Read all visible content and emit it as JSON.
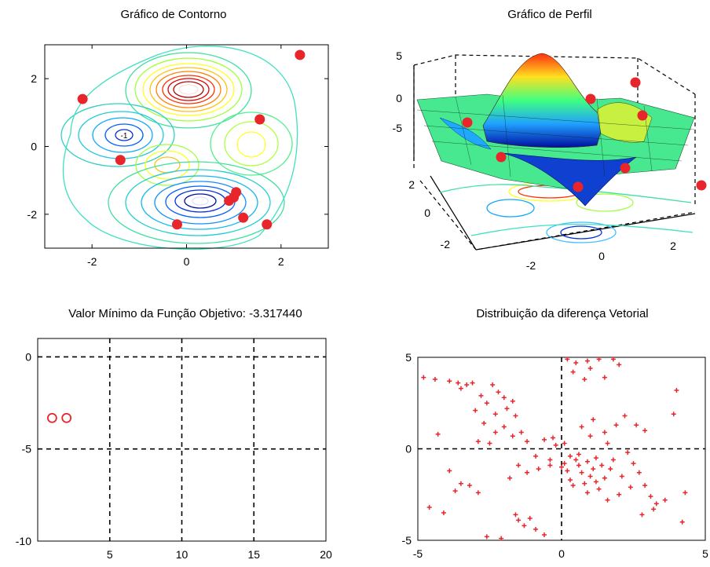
{
  "chart_data": [
    {
      "type": "contour",
      "title": "Gráfico de Contorno",
      "xlim": [
        -3,
        3
      ],
      "ylim": [
        -3,
        3
      ],
      "xticks": [
        -2,
        0,
        2
      ],
      "yticks": [
        -2,
        0,
        2
      ],
      "contour_labels": [
        "-1"
      ],
      "points": [
        {
          "x": 2.4,
          "y": 2.7
        },
        {
          "x": -2.2,
          "y": 1.4
        },
        {
          "x": 1.55,
          "y": 0.8
        },
        {
          "x": -1.4,
          "y": -0.4
        },
        {
          "x": 1.05,
          "y": -1.35
        },
        {
          "x": 1.0,
          "y": -1.5
        },
        {
          "x": 0.9,
          "y": -1.6
        },
        {
          "x": 1.2,
          "y": -2.1
        },
        {
          "x": 1.7,
          "y": -2.3
        },
        {
          "x": -0.2,
          "y": -2.3
        }
      ],
      "point_color": "#e8252b"
    },
    {
      "type": "surface",
      "title": "Gráfico de Perfil",
      "zticks": [
        5,
        0,
        -5
      ],
      "yticks": [
        2,
        0,
        -2
      ],
      "xticks": [
        -2,
        0,
        2
      ],
      "colormap": "jet"
    },
    {
      "type": "scatter",
      "title": "Valor Mínimo da Função Objetivo: -3.317440",
      "xlim": [
        0,
        20
      ],
      "ylim": [
        -10,
        1
      ],
      "xticks": [
        5,
        10,
        15,
        20
      ],
      "yticks": [
        0,
        -5,
        -10
      ],
      "grid": true,
      "points": [
        {
          "x": 1,
          "y": -3.31744
        },
        {
          "x": 2,
          "y": -3.31744
        }
      ],
      "marker": "o",
      "color": "#e8252b"
    },
    {
      "type": "scatter",
      "title": "Distribuição da diferença Vetorial",
      "xlim": [
        -5,
        5
      ],
      "ylim": [
        -5,
        5
      ],
      "xticks": [
        -5,
        0,
        5
      ],
      "yticks": [
        5,
        0,
        -5
      ],
      "axis_lines": "x=0, y=0 dashed",
      "marker": "+",
      "color": "#e8252b",
      "points": [
        [
          -3.9,
          3.7
        ],
        [
          -3.6,
          3.6
        ],
        [
          -3.3,
          3.5
        ],
        [
          -3.5,
          3.3
        ],
        [
          -3.1,
          3.6
        ],
        [
          -2.8,
          2.9
        ],
        [
          -2.4,
          3.5
        ],
        [
          -2.2,
          3.1
        ],
        [
          -2.0,
          2.8
        ],
        [
          -1.7,
          2.6
        ],
        [
          -3.0,
          2.1
        ],
        [
          -2.6,
          2.5
        ],
        [
          -2.3,
          1.9
        ],
        [
          -1.9,
          2.2
        ],
        [
          -1.6,
          1.8
        ],
        [
          -2.7,
          1.4
        ],
        [
          -2.3,
          0.9
        ],
        [
          -2.0,
          1.2
        ],
        [
          -1.7,
          0.7
        ],
        [
          -1.4,
          0.9
        ],
        [
          -2.9,
          0.4
        ],
        [
          -2.5,
          0.3
        ],
        [
          -1.2,
          0.4
        ],
        [
          -0.6,
          0.5
        ],
        [
          -0.3,
          0.6
        ],
        [
          -0.2,
          0.2
        ],
        [
          0.1,
          0.3
        ],
        [
          0.3,
          -0.4
        ],
        [
          0.5,
          -0.6
        ],
        [
          0.1,
          -0.8
        ],
        [
          0.6,
          -0.3
        ],
        [
          0.9,
          -0.7
        ],
        [
          1.2,
          -0.5
        ],
        [
          1.4,
          -0.9
        ],
        [
          1.7,
          -1.1
        ],
        [
          1.5,
          -1.6
        ],
        [
          1.0,
          -1.5
        ],
        [
          0.7,
          -1.3
        ],
        [
          0.3,
          -1.7
        ],
        [
          0.2,
          -1.2
        ],
        [
          0.4,
          -2.0
        ],
        [
          -1.8,
          -1.6
        ],
        [
          -1.2,
          -1.3
        ],
        [
          -0.8,
          -1.1
        ],
        [
          -0.4,
          -0.9
        ],
        [
          0.7,
          1.2
        ],
        [
          1.1,
          1.6
        ],
        [
          1.5,
          0.9
        ],
        [
          1.9,
          1.3
        ],
        [
          2.2,
          1.8
        ],
        [
          2.6,
          1.3
        ],
        [
          2.9,
          1.0
        ],
        [
          1.0,
          0.7
        ],
        [
          1.6,
          0.3
        ],
        [
          2.3,
          -0.2
        ],
        [
          2.5,
          -0.8
        ],
        [
          2.7,
          -1.3
        ],
        [
          2.9,
          -2.0
        ],
        [
          3.1,
          -2.6
        ],
        [
          3.3,
          -3.0
        ],
        [
          3.6,
          -2.8
        ],
        [
          2.4,
          -2.1
        ],
        [
          2.0,
          -2.5
        ],
        [
          1.6,
          -2.8
        ],
        [
          2.8,
          -3.6
        ],
        [
          3.2,
          -3.3
        ],
        [
          4.2,
          -4.0
        ],
        [
          3.9,
          1.9
        ],
        [
          4.0,
          3.2
        ],
        [
          4.3,
          -2.4
        ],
        [
          0.2,
          4.9
        ],
        [
          0.5,
          4.7
        ],
        [
          0.9,
          4.8
        ],
        [
          1.3,
          4.9
        ],
        [
          1.8,
          4.9
        ],
        [
          2.0,
          4.6
        ],
        [
          0.4,
          4.2
        ],
        [
          0.8,
          3.8
        ],
        [
          1.0,
          4.4
        ],
        [
          1.5,
          3.9
        ],
        [
          -1.6,
          -3.6
        ],
        [
          -1.5,
          -3.9
        ],
        [
          -1.1,
          -3.8
        ],
        [
          -1.3,
          -4.2
        ],
        [
          -0.9,
          -4.4
        ],
        [
          -0.6,
          -4.7
        ],
        [
          -2.1,
          -4.9
        ],
        [
          -2.6,
          -4.8
        ],
        [
          -4.6,
          -3.2
        ],
        [
          -4.1,
          -3.5
        ],
        [
          -3.2,
          -2.0
        ],
        [
          -2.9,
          -2.4
        ],
        [
          -3.5,
          -1.9
        ],
        [
          -3.7,
          -2.3
        ],
        [
          -3.9,
          -1.2
        ],
        [
          -4.3,
          0.8
        ],
        [
          -4.8,
          3.9
        ],
        [
          -4.4,
          3.8
        ],
        [
          -1.5,
          -0.9
        ],
        [
          -0.9,
          -0.4
        ],
        [
          0.8,
          -1.9
        ],
        [
          1.3,
          -2.2
        ],
        [
          1.8,
          -0.6
        ],
        [
          2.1,
          -1.5
        ],
        [
          0.0,
          -1.0
        ],
        [
          -0.4,
          -0.6
        ],
        [
          0.6,
          -0.9
        ],
        [
          1.2,
          -1.8
        ],
        [
          0.9,
          -2.4
        ],
        [
          1.1,
          -1.1
        ]
      ]
    }
  ]
}
